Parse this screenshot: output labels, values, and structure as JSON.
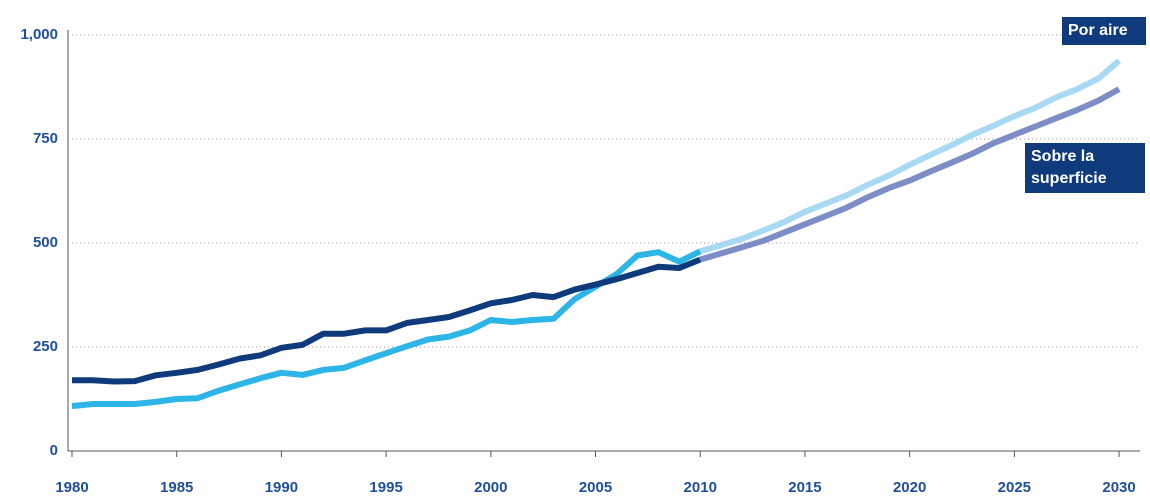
{
  "chart_data": {
    "type": "line",
    "x": [
      1980,
      1981,
      1982,
      1983,
      1984,
      1985,
      1986,
      1987,
      1988,
      1989,
      1990,
      1991,
      1992,
      1993,
      1994,
      1995,
      1996,
      1997,
      1998,
      1999,
      2000,
      2001,
      2002,
      2003,
      2004,
      2005,
      2006,
      2007,
      2008,
      2009,
      2010,
      2011,
      2012,
      2013,
      2014,
      2015,
      2016,
      2017,
      2018,
      2019,
      2020,
      2021,
      2022,
      2023,
      2024,
      2025,
      2026,
      2027,
      2028,
      2029,
      2030
    ],
    "forecast_from": 2010,
    "series": [
      {
        "name": "Por aire",
        "color": "#2cb5e6",
        "forecast_color": "#a8d9f3",
        "values": [
          108,
          113,
          113,
          113,
          118,
          125,
          127,
          145,
          160,
          175,
          188,
          183,
          195,
          200,
          218,
          235,
          252,
          268,
          275,
          290,
          315,
          310,
          315,
          318,
          365,
          395,
          425,
          470,
          478,
          455,
          480,
          495,
          510,
          530,
          550,
          575,
          595,
          615,
          640,
          662,
          688,
          712,
          735,
          760,
          782,
          805,
          825,
          850,
          870,
          895,
          938
        ]
      },
      {
        "name": "Sobre la superficie",
        "color": "#0f3b7c",
        "forecast_color": "#7d8ec6",
        "values": [
          170,
          170,
          167,
          168,
          182,
          188,
          195,
          208,
          222,
          230,
          248,
          255,
          282,
          282,
          290,
          290,
          308,
          315,
          322,
          338,
          355,
          363,
          375,
          370,
          388,
          400,
          413,
          428,
          443,
          440,
          460,
          475,
          490,
          505,
          525,
          545,
          565,
          585,
          610,
          632,
          650,
          672,
          693,
          715,
          740,
          760,
          780,
          800,
          820,
          842,
          870
        ]
      }
    ],
    "xlim": [
      1980,
      2031
    ],
    "xticks": [
      1980,
      1985,
      1990,
      1995,
      2000,
      2005,
      2010,
      2015,
      2020,
      2025,
      2030
    ],
    "ylim": [
      0,
      1000
    ],
    "yticks": [
      0,
      250,
      500,
      750,
      {
        "value": 1000,
        "label": "1,000"
      }
    ],
    "grid": true
  }
}
